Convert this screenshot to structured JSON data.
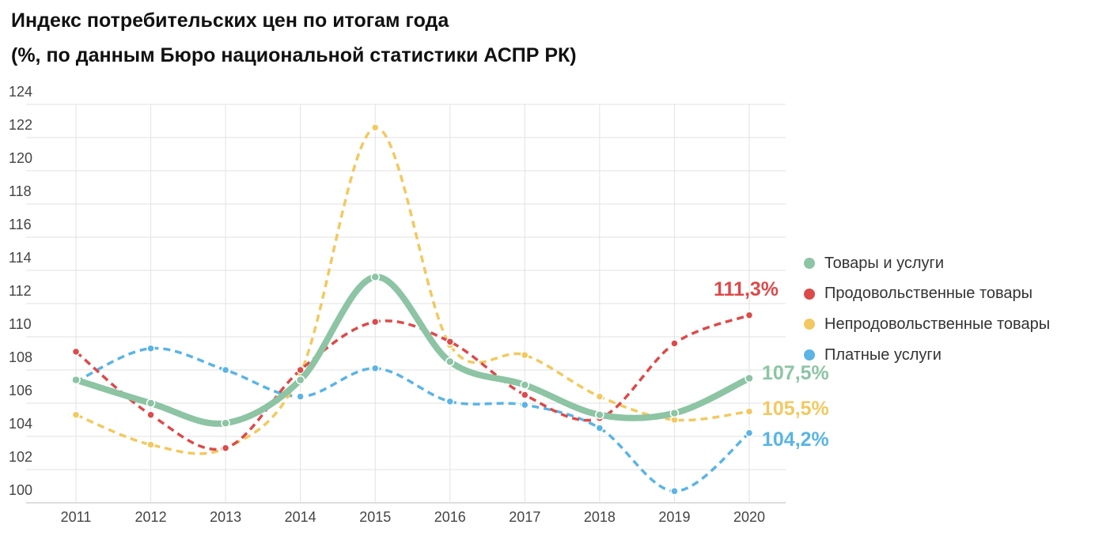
{
  "title_line1": "Индекс потребительских цен по итогам года",
  "title_line2": "(%, по данным Бюро национальной статистики АСПР РК)",
  "chart_data": {
    "type": "line",
    "title": "Индекс потребительских цен по итогам года (%, по данным Бюро национальной статистики АСПР РК)",
    "categories": [
      "2011",
      "2012",
      "2013",
      "2014",
      "2015",
      "2016",
      "2017",
      "2018",
      "2019",
      "2020"
    ],
    "ylim": [
      100,
      124
    ],
    "yticks": [
      "100",
      "102",
      "104",
      "106",
      "108",
      "110",
      "112",
      "114",
      "116",
      "118",
      "120",
      "122",
      "124"
    ],
    "grid": true,
    "legend_position": "right",
    "series": [
      {
        "name": "Товары и услуги",
        "color": "#8cc4a4",
        "style": "solid",
        "values": [
          107.4,
          106.0,
          104.8,
          107.4,
          113.6,
          108.5,
          107.1,
          105.3,
          105.4,
          107.5
        ],
        "end_label": "107,5%"
      },
      {
        "name": "Продовольственные товары",
        "color": "#dc4a4a",
        "style": "dashed",
        "values": [
          109.1,
          105.3,
          103.3,
          108.0,
          110.9,
          109.7,
          106.5,
          105.1,
          109.6,
          111.3
        ],
        "end_label": "111,3%"
      },
      {
        "name": "Непродовольственные товары",
        "color": "#f2c960",
        "style": "dashed",
        "values": [
          105.3,
          103.5,
          103.3,
          107.8,
          122.6,
          109.5,
          108.9,
          106.4,
          105.0,
          105.5
        ],
        "end_label": "105,5%"
      },
      {
        "name": "Платные услуги",
        "color": "#5ab4e5",
        "style": "dashed",
        "values": [
          107.3,
          109.3,
          108.0,
          106.4,
          108.1,
          106.1,
          105.9,
          104.5,
          100.7,
          104.2
        ],
        "end_label": "104,2%"
      }
    ]
  }
}
